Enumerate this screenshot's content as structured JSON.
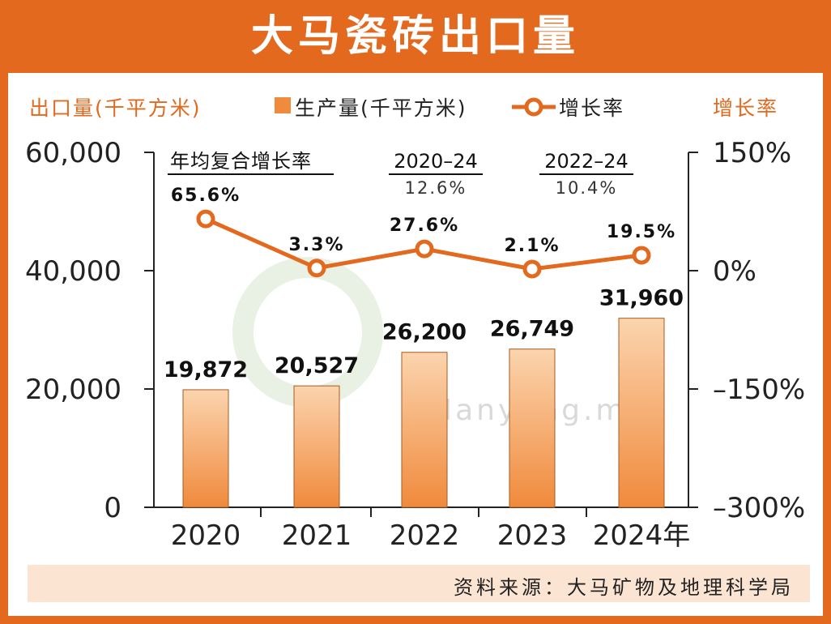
{
  "title": "大马瓷砖出口量",
  "left_axis_title": "出口量(千平方米)",
  "right_axis_title": "增长率",
  "legend": {
    "bar_label": "生产量(千平方米)",
    "line_label": "增长率"
  },
  "cagr": {
    "header": "年均复合增长率",
    "periods": [
      {
        "period": "2020–24",
        "value": "12.6%"
      },
      {
        "period": "2022–24",
        "value": "10.4%"
      }
    ]
  },
  "watermark": "eNanyang.my",
  "source": "资料来源：大马矿物及地理科学局",
  "colors": {
    "accent": "#E2691E",
    "bar": "#F08A3C",
    "bar_light": "#FBD4AE",
    "source_bg": "#FBE4D2"
  },
  "chart_data": {
    "type": "bar",
    "categories": [
      "2020",
      "2021",
      "2022",
      "2023",
      "2024年"
    ],
    "series": [
      {
        "name": "生产量(千平方米)",
        "type": "bar",
        "axis": "left",
        "values": [
          19872,
          20527,
          26200,
          26749,
          31960
        ],
        "labels": [
          "19,872",
          "20,527",
          "26,200",
          "26,749",
          "31,960"
        ]
      },
      {
        "name": "增长率",
        "type": "line",
        "axis": "right",
        "values": [
          65.6,
          3.3,
          27.6,
          2.1,
          19.5
        ],
        "labels": [
          "65.6%",
          "3.3%",
          "27.6%",
          "2.1%",
          "19.5%"
        ]
      }
    ],
    "left_axis": {
      "ylim": [
        0,
        60000
      ],
      "ticks": [
        "0",
        "20,000",
        "40,000",
        "60,000"
      ]
    },
    "right_axis": {
      "ylim": [
        -300,
        150
      ],
      "ticks": [
        "–300%",
        "–150%",
        "0%",
        "150%"
      ]
    }
  }
}
